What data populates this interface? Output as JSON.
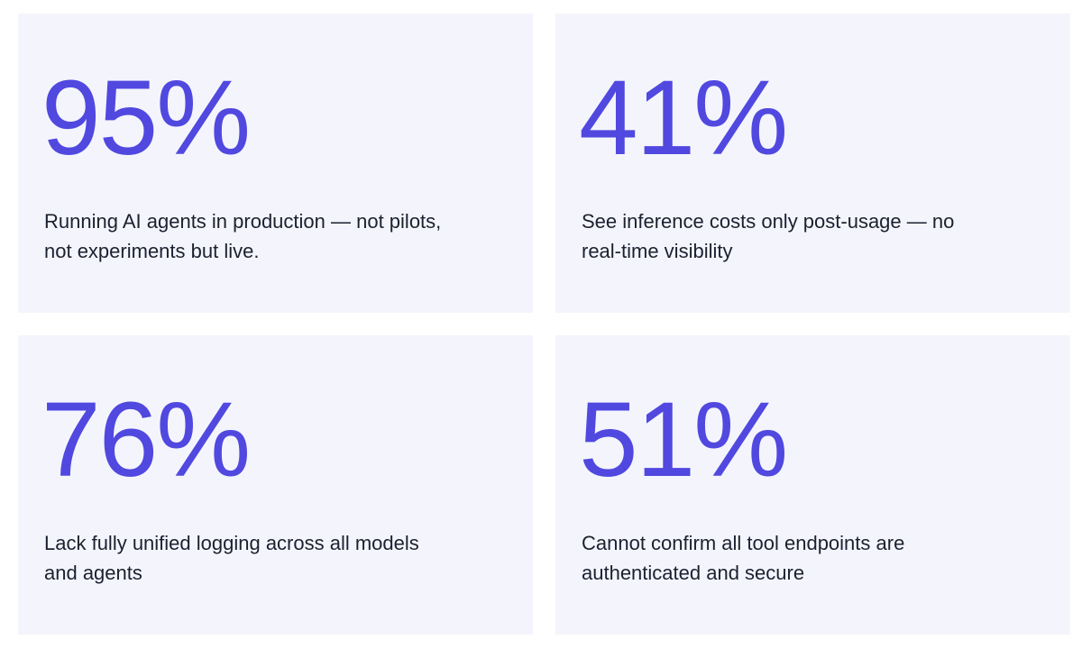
{
  "cards": [
    {
      "stat": "95%",
      "lines": [
        "Running AI agents in production — not pilots,",
        "not experiments but live."
      ]
    },
    {
      "stat": "41%",
      "lines": [
        "See inference costs only post-usage — no",
        "real-time visibility"
      ]
    },
    {
      "stat": "76%",
      "lines": [
        "Lack fully unified logging across all models",
        "and agents"
      ]
    },
    {
      "stat": "51%",
      "lines": [
        "Cannot confirm all tool endpoints are",
        "authenticated and secure"
      ]
    }
  ]
}
